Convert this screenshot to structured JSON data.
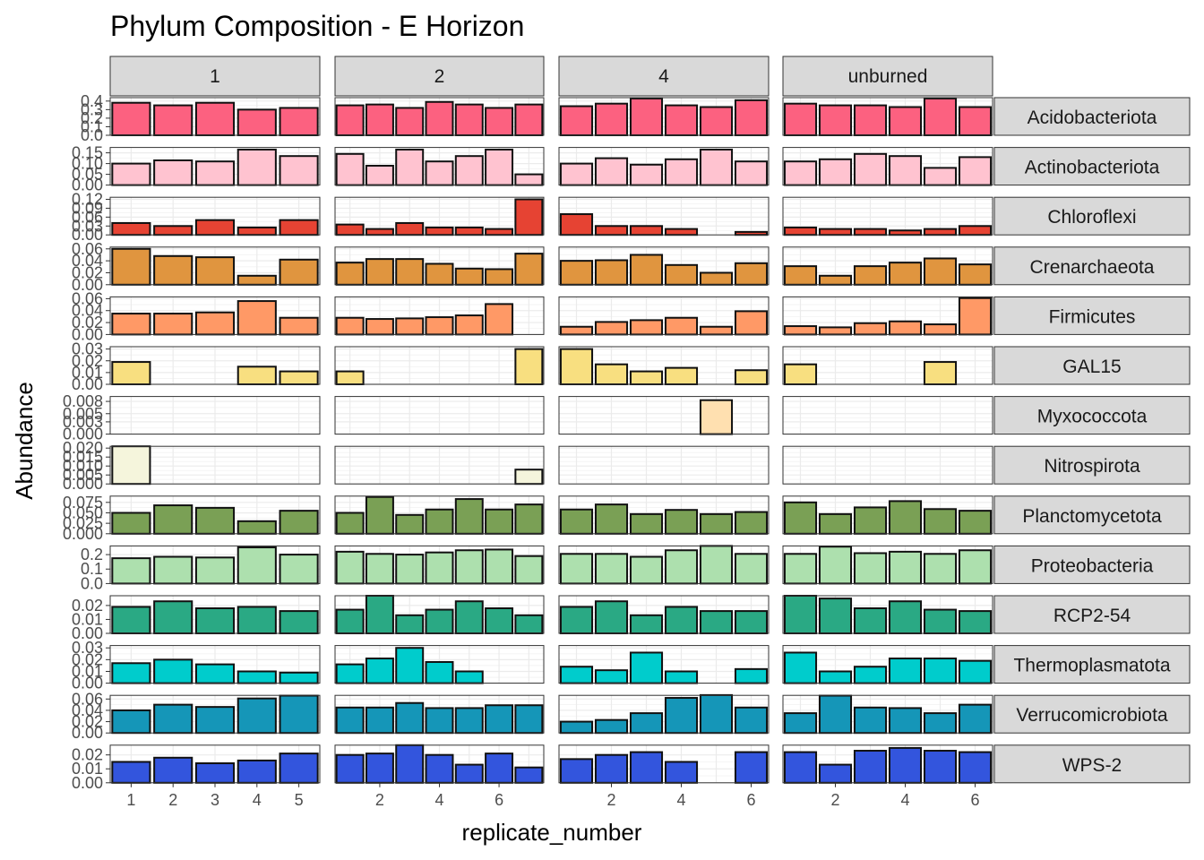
{
  "chart_data": {
    "type": "bar",
    "title": "Phylum Composition - E Horizon",
    "xlabel": "replicate_number",
    "ylabel": "Abundance",
    "facet_columns": [
      "1",
      "2",
      "4",
      "unburned"
    ],
    "x_axis": [
      {
        "min": 0.5,
        "max": 5.5,
        "ticks": [
          1,
          2,
          3,
          4,
          5
        ]
      },
      {
        "min": 0.5,
        "max": 7.5,
        "ticks": [
          2,
          4,
          6
        ]
      },
      {
        "min": 0.5,
        "max": 6.5,
        "ticks": [
          2,
          4,
          6
        ]
      },
      {
        "min": 0.5,
        "max": 6.5,
        "ticks": [
          2,
          4,
          6
        ]
      }
    ],
    "rows": [
      {
        "phylum": "Acidobacteriota",
        "color": "#FC6180",
        "yticks": [
          "0.0",
          "0.1",
          "0.2",
          "0.3",
          "0.4"
        ],
        "tickvals": [
          0,
          0.1,
          0.2,
          0.3,
          0.4
        ],
        "ylim": [
          0,
          0.44
        ],
        "values": [
          [
            0.38,
            0.35,
            0.38,
            0.3,
            0.32
          ],
          [
            0.35,
            0.36,
            0.32,
            0.39,
            0.36,
            0.32,
            0.36
          ],
          [
            0.34,
            0.37,
            0.43,
            0.35,
            0.33,
            0.41
          ],
          [
            0.37,
            0.35,
            0.35,
            0.33,
            0.43,
            0.33
          ]
        ]
      },
      {
        "phylum": "Actinobacteriota",
        "color": "#FFC3D0",
        "yticks": [
          "0.00",
          "0.05",
          "0.10",
          "0.15"
        ],
        "tickvals": [
          0,
          0.05,
          0.1,
          0.15
        ],
        "ylim": [
          0,
          0.175
        ],
        "values": [
          [
            0.1,
            0.115,
            0.11,
            0.165,
            0.135
          ],
          [
            0.145,
            0.09,
            0.165,
            0.11,
            0.135,
            0.165,
            0.05
          ],
          [
            0.1,
            0.125,
            0.095,
            0.12,
            0.165,
            0.11
          ],
          [
            0.11,
            0.12,
            0.145,
            0.135,
            0.08,
            0.13
          ]
        ]
      },
      {
        "phylum": "Chloroflexi",
        "color": "#E64333",
        "yticks": [
          "0.00",
          "0.03",
          "0.06",
          "0.09",
          "0.12"
        ],
        "tickvals": [
          0,
          0.03,
          0.06,
          0.09,
          0.12
        ],
        "ylim": [
          0,
          0.127
        ],
        "values": [
          [
            0.04,
            0.03,
            0.05,
            0.025,
            0.05
          ],
          [
            0.035,
            0.02,
            0.04,
            0.025,
            0.025,
            0.02,
            0.12
          ],
          [
            0.07,
            0.03,
            0.03,
            0.02,
            0,
            0.01
          ],
          [
            0.025,
            0.02,
            0.02,
            0.015,
            0.02,
            0.03
          ]
        ]
      },
      {
        "phylum": "Crenarchaeota",
        "color": "#E0953F",
        "yticks": [
          "0.00",
          "0.02",
          "0.04",
          "0.06"
        ],
        "tickvals": [
          0,
          0.02,
          0.04,
          0.06
        ],
        "ylim": [
          0,
          0.063
        ],
        "values": [
          [
            0.06,
            0.048,
            0.046,
            0.015,
            0.042
          ],
          [
            0.037,
            0.043,
            0.043,
            0.035,
            0.027,
            0.026,
            0.052
          ],
          [
            0.04,
            0.041,
            0.05,
            0.033,
            0.02,
            0.036
          ],
          [
            0.031,
            0.015,
            0.031,
            0.037,
            0.044,
            0.034
          ]
        ]
      },
      {
        "phylum": "Firmicutes",
        "color": "#FF9966",
        "yticks": [
          "0.00",
          "0.02",
          "0.04",
          "0.06"
        ],
        "tickvals": [
          0,
          0.02,
          0.04,
          0.06
        ],
        "ylim": [
          0,
          0.063
        ],
        "values": [
          [
            0.035,
            0.035,
            0.037,
            0.056,
            0.028
          ],
          [
            0.028,
            0.026,
            0.027,
            0.029,
            0.032,
            0.051,
            0
          ],
          [
            0.013,
            0.021,
            0.024,
            0.028,
            0.013,
            0.039
          ],
          [
            0.014,
            0.012,
            0.019,
            0.022,
            0.017,
            0.061
          ]
        ]
      },
      {
        "phylum": "GAL15",
        "color": "#F8DF80",
        "yticks": [
          "0.00",
          "0.01",
          "0.02",
          "0.03"
        ],
        "tickvals": [
          0,
          0.01,
          0.02,
          0.03
        ],
        "ylim": [
          0,
          0.032
        ],
        "values": [
          [
            0.019,
            0,
            0,
            0.015,
            0.011
          ],
          [
            0.011,
            0,
            0,
            0,
            0,
            0,
            0.03
          ],
          [
            0.03,
            0.017,
            0.011,
            0.014,
            0,
            0.012
          ],
          [
            0.017,
            0,
            0,
            0,
            0.019,
            0
          ]
        ]
      },
      {
        "phylum": "Myxococcota",
        "color": "#FFE0B0",
        "yticks": [
          "0.000",
          "0.003",
          "0.005",
          "0.008"
        ],
        "tickvals": [
          0,
          0.003,
          0.005,
          0.008
        ],
        "ylim": [
          0,
          0.0092
        ],
        "values": [
          [
            0,
            0,
            0,
            0,
            0
          ],
          [
            0,
            0,
            0,
            0,
            0,
            0,
            0
          ],
          [
            0,
            0,
            0,
            0,
            0.0083,
            0
          ],
          [
            0,
            0,
            0,
            0,
            0,
            0
          ]
        ]
      },
      {
        "phylum": "Nitrospirota",
        "color": "#F5F5DC",
        "yticks": [
          "0.000",
          "0.005",
          "0.010",
          "0.015",
          "0.020"
        ],
        "tickvals": [
          0,
          0.005,
          0.01,
          0.015,
          0.02
        ],
        "ylim": [
          0,
          0.021
        ],
        "values": [
          [
            0.021,
            0,
            0,
            0,
            0
          ],
          [
            0,
            0,
            0,
            0,
            0,
            0,
            0.008
          ],
          [
            0,
            0,
            0,
            0,
            0,
            0
          ],
          [
            0,
            0,
            0,
            0,
            0,
            0
          ]
        ]
      },
      {
        "phylum": "Planctomycetota",
        "color": "#7AA055",
        "yticks": [
          "0.000",
          "0.025",
          "0.050",
          "0.075"
        ],
        "tickvals": [
          0,
          0.025,
          0.05,
          0.075
        ],
        "ylim": [
          0,
          0.09
        ],
        "values": [
          [
            0.05,
            0.068,
            0.062,
            0.03,
            0.055
          ],
          [
            0.05,
            0.088,
            0.045,
            0.058,
            0.083,
            0.058,
            0.07
          ],
          [
            0.058,
            0.07,
            0.047,
            0.057,
            0.047,
            0.052
          ],
          [
            0.075,
            0.047,
            0.063,
            0.078,
            0.059,
            0.055
          ]
        ]
      },
      {
        "phylum": "Proteobacteria",
        "color": "#ADE0AE",
        "yticks": [
          "0.0",
          "0.1",
          "0.2"
        ],
        "tickvals": [
          0,
          0.1,
          0.2
        ],
        "ylim": [
          0,
          0.26
        ],
        "values": [
          [
            0.175,
            0.185,
            0.18,
            0.25,
            0.2
          ],
          [
            0.22,
            0.205,
            0.2,
            0.215,
            0.23,
            0.235,
            0.19
          ],
          [
            0.205,
            0.205,
            0.185,
            0.23,
            0.26,
            0.205
          ],
          [
            0.205,
            0.255,
            0.21,
            0.22,
            0.205,
            0.23
          ]
        ]
      },
      {
        "phylum": "RCP2-54",
        "color": "#2AA984",
        "yticks": [
          "0.00",
          "0.01",
          "0.02"
        ],
        "tickvals": [
          0,
          0.01,
          0.02
        ],
        "ylim": [
          0,
          0.027
        ],
        "values": [
          [
            0.019,
            0.023,
            0.018,
            0.019,
            0.016
          ],
          [
            0.017,
            0.027,
            0.013,
            0.017,
            0.023,
            0.018,
            0.013
          ],
          [
            0.019,
            0.023,
            0.013,
            0.019,
            0.016,
            0.016
          ],
          [
            0.027,
            0.025,
            0.018,
            0.023,
            0.017,
            0.016
          ]
        ]
      },
      {
        "phylum": "Thermoplasmatota",
        "color": "#00CCCC",
        "yticks": [
          "0.00",
          "0.01",
          "0.02",
          "0.03"
        ],
        "tickvals": [
          0,
          0.01,
          0.02,
          0.03
        ],
        "ylim": [
          0,
          0.032
        ],
        "values": [
          [
            0.017,
            0.02,
            0.016,
            0.01,
            0.009
          ],
          [
            0.016,
            0.021,
            0.03,
            0.018,
            0.01,
            0,
            0
          ],
          [
            0.014,
            0.011,
            0.026,
            0.01,
            0,
            0.012
          ],
          [
            0.026,
            0.01,
            0.014,
            0.021,
            0.021,
            0.019
          ]
        ]
      },
      {
        "phylum": "Verrucomicrobiota",
        "color": "#1596B8",
        "yticks": [
          "0.00",
          "0.02",
          "0.04",
          "0.06"
        ],
        "tickvals": [
          0,
          0.02,
          0.04,
          0.06
        ],
        "ylim": [
          0,
          0.0665
        ],
        "values": [
          [
            0.04,
            0.05,
            0.046,
            0.061,
            0.066
          ],
          [
            0.045,
            0.045,
            0.053,
            0.044,
            0.044,
            0.049,
            0.049
          ],
          [
            0.02,
            0.023,
            0.035,
            0.062,
            0.067,
            0.045
          ],
          [
            0.035,
            0.066,
            0.045,
            0.044,
            0.035,
            0.05
          ]
        ]
      },
      {
        "phylum": "WPS-2",
        "color": "#3355DD",
        "yticks": [
          "0.00",
          "0.01",
          "0.02"
        ],
        "tickvals": [
          0,
          0.01,
          0.02
        ],
        "ylim": [
          0,
          0.027
        ],
        "values": [
          [
            0.015,
            0.018,
            0.014,
            0.016,
            0.021
          ],
          [
            0.02,
            0.021,
            0.027,
            0.02,
            0.013,
            0.021,
            0.011
          ],
          [
            0.017,
            0.02,
            0.022,
            0.015,
            0,
            0.022
          ],
          [
            0.022,
            0.013,
            0.023,
            0.025,
            0.023,
            0.022
          ]
        ]
      }
    ],
    "grid": true,
    "legend": "none"
  }
}
